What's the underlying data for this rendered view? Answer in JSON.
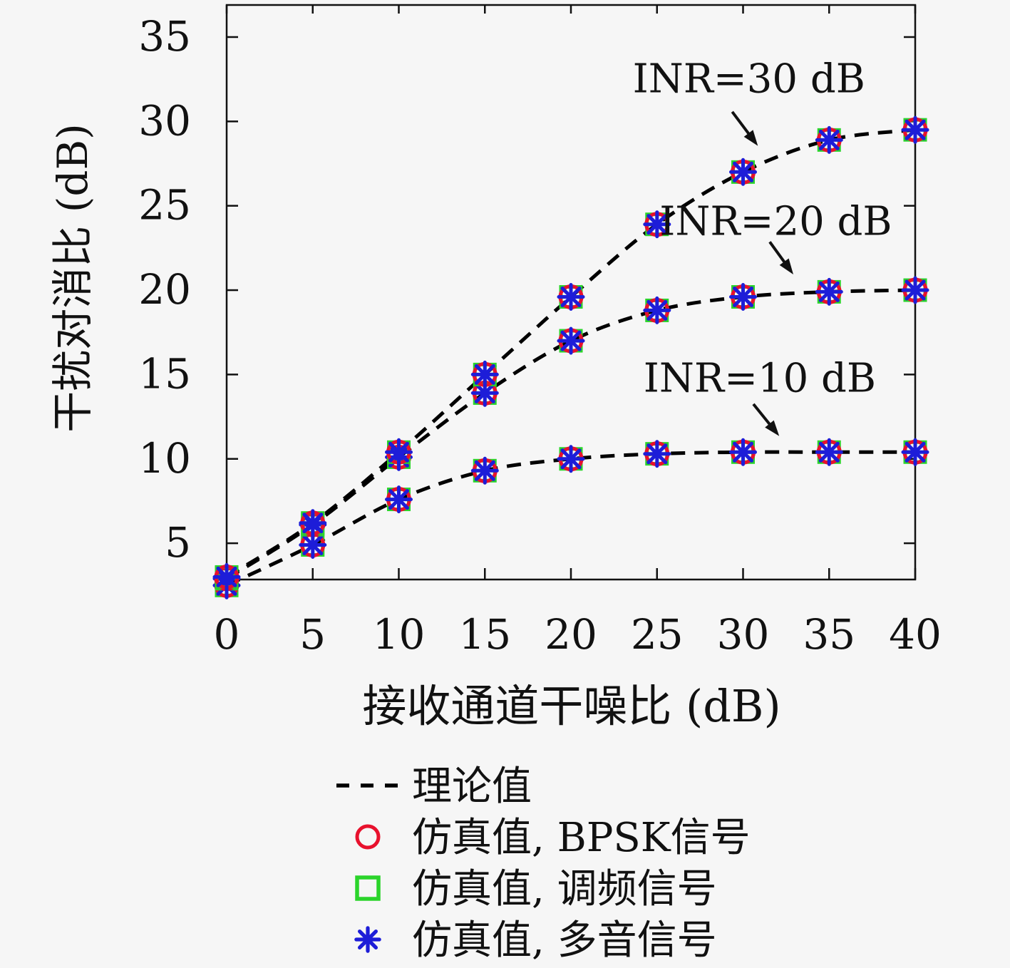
{
  "figure": {
    "background_color": "#f6f6f6",
    "text_color": "#111111"
  },
  "chart_data": {
    "type": "line",
    "title": "",
    "xlabel": "接收通道干噪比 (dB)",
    "ylabel": "干扰对消比 (dB)",
    "xlim": [
      0,
      40
    ],
    "ylim": [
      2.85,
      36.9
    ],
    "grid": false,
    "xticks": [
      "0",
      "5",
      "10",
      "15",
      "20",
      "25",
      "30",
      "35",
      "40"
    ],
    "xtick_values": [
      0,
      5,
      10,
      15,
      20,
      25,
      30,
      35,
      40
    ],
    "yticks": [
      "5",
      "10",
      "15",
      "20",
      "25",
      "30",
      "35"
    ],
    "ytick_values": [
      5,
      10,
      15,
      20,
      25,
      30,
      35
    ],
    "x": [
      0,
      5,
      10,
      15,
      20,
      25,
      30,
      35,
      40
    ],
    "theory_line": {
      "style": "dashed",
      "color": "#000000",
      "label": "理论值"
    },
    "series": [
      {
        "name": "INR=10 dB",
        "values": [
          2.5,
          4.9,
          7.6,
          9.3,
          10.0,
          10.3,
          10.4,
          10.4,
          10.4
        ]
      },
      {
        "name": "INR=20 dB",
        "values": [
          2.9,
          6.1,
          10.1,
          13.9,
          17.0,
          18.8,
          19.6,
          19.9,
          20.0
        ]
      },
      {
        "name": "INR=30 dB",
        "values": [
          3.0,
          6.2,
          10.4,
          15.0,
          19.6,
          23.9,
          27.0,
          28.9,
          29.5
        ]
      }
    ],
    "marker_overlays": [
      {
        "shape": "square",
        "color": "#2bd42b",
        "label": "仿真值, 调频信号"
      },
      {
        "shape": "circle",
        "color": "#e8112d",
        "label": "仿真值, BPSK信号"
      },
      {
        "shape": "asterisk",
        "color": "#1d1dd8",
        "label": "仿真值, 多音信号"
      }
    ],
    "annotations": [
      {
        "text": "INR=30 dB",
        "text_xy": [
          30.34,
          32.57
        ],
        "arrow_from": [
          29.37,
          30.57
        ],
        "arrow_to": [
          30.86,
          28.55
        ]
      },
      {
        "text": "INR=20 dB",
        "text_xy": [
          31.9,
          24.12
        ],
        "arrow_from": [
          31.55,
          22.86
        ],
        "arrow_to": [
          32.92,
          20.93
        ]
      },
      {
        "text": "INR=10 dB",
        "text_xy": [
          30.97,
          14.82
        ],
        "arrow_from": [
          30.6,
          13.25
        ],
        "arrow_to": [
          32.1,
          11.35
        ]
      }
    ],
    "legend": {
      "position": "below-axis",
      "items": [
        {
          "marker": "dash",
          "color": "#000000",
          "label": "理论值"
        },
        {
          "marker": "circle",
          "color": "#e8112d",
          "label": "仿真值, BPSK信号"
        },
        {
          "marker": "square",
          "color": "#2bd42b",
          "label": "仿真值, 调频信号"
        },
        {
          "marker": "asterisk",
          "color": "#1d1dd8",
          "label": "仿真值, 多音信号"
        }
      ]
    }
  }
}
